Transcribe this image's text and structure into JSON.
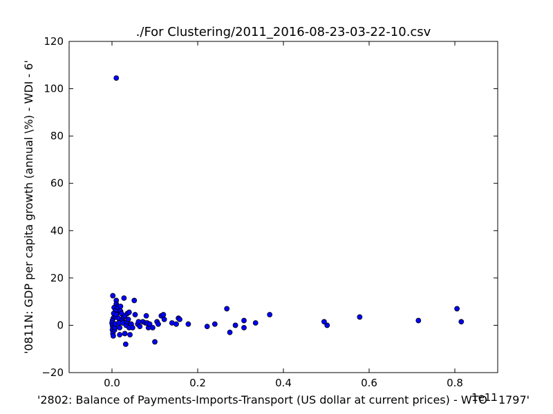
{
  "chart_data": {
    "type": "scatter",
    "title": "./For Clustering/2011_2016-08-23-03-22-10.csv",
    "xlabel": "'2802: Balance of Payments-Imports-Transport (US dollar at current prices) - WTO - 1797'",
    "ylabel": "'0811N: GDP per capita growth  (annual \\%) - WDI - 6'",
    "x_offset_label": "1e11",
    "xlim": [
      -0.1,
      0.9
    ],
    "ylim": [
      -20,
      120
    ],
    "x_ticks": [
      0.0,
      0.2,
      0.4,
      0.6,
      0.8
    ],
    "x_tick_labels": [
      "0.0",
      "0.2",
      "0.4",
      "0.6",
      "0.8"
    ],
    "y_ticks": [
      -20,
      0,
      20,
      40,
      60,
      80,
      100,
      120
    ],
    "y_tick_labels": [
      "−20",
      "0",
      "20",
      "40",
      "60",
      "80",
      "100",
      "120"
    ],
    "grid": false,
    "marker_color": "#0000ff",
    "series": [
      {
        "points": [
          [
            0.01,
            104.5
          ],
          [
            0.002,
            12.5
          ],
          [
            0.01,
            10.5
          ],
          [
            0.01,
            9.0
          ],
          [
            0.013,
            8.0
          ],
          [
            0.005,
            7.5
          ],
          [
            0.012,
            7.0
          ],
          [
            0.02,
            8.0
          ],
          [
            0.015,
            5.5
          ],
          [
            0.008,
            6.0
          ],
          [
            0.004,
            5.0
          ],
          [
            0.003,
            3.0
          ],
          [
            0.001,
            2.0
          ],
          [
            0.0,
            1.0
          ],
          [
            0.001,
            0.0
          ],
          [
            0.002,
            -1.0
          ],
          [
            0.001,
            -2.0
          ],
          [
            0.002,
            -3.5
          ],
          [
            0.003,
            -4.5
          ],
          [
            0.006,
            -2.0
          ],
          [
            0.007,
            -1.0
          ],
          [
            0.008,
            0.5
          ],
          [
            0.009,
            3.5
          ],
          [
            0.01,
            4.5
          ],
          [
            0.015,
            3.0
          ],
          [
            0.016,
            1.0
          ],
          [
            0.018,
            -1.0
          ],
          [
            0.018,
            -4.0
          ],
          [
            0.02,
            6.0
          ],
          [
            0.022,
            5.0
          ],
          [
            0.024,
            2.5
          ],
          [
            0.025,
            1.0
          ],
          [
            0.027,
            3.5
          ],
          [
            0.028,
            11.5
          ],
          [
            0.03,
            4.0
          ],
          [
            0.03,
            -3.5
          ],
          [
            0.032,
            -8.0
          ],
          [
            0.033,
            0.0
          ],
          [
            0.035,
            1.5
          ],
          [
            0.036,
            5.0
          ],
          [
            0.038,
            2.5
          ],
          [
            0.04,
            -1.0
          ],
          [
            0.04,
            5.5
          ],
          [
            0.042,
            -4.0
          ],
          [
            0.045,
            0.5
          ],
          [
            0.048,
            -1.0
          ],
          [
            0.052,
            10.5
          ],
          [
            0.054,
            4.5
          ],
          [
            0.06,
            0.5
          ],
          [
            0.062,
            1.5
          ],
          [
            0.065,
            -0.5
          ],
          [
            0.072,
            1.5
          ],
          [
            0.078,
            1.0
          ],
          [
            0.08,
            4.0
          ],
          [
            0.082,
            1.0
          ],
          [
            0.085,
            -1.0
          ],
          [
            0.088,
            0.5
          ],
          [
            0.095,
            -1.0
          ],
          [
            0.1,
            -7.0
          ],
          [
            0.105,
            1.5
          ],
          [
            0.108,
            0.5
          ],
          [
            0.115,
            4.0
          ],
          [
            0.12,
            4.5
          ],
          [
            0.122,
            2.5
          ],
          [
            0.14,
            1.0
          ],
          [
            0.15,
            0.5
          ],
          [
            0.155,
            3.0
          ],
          [
            0.158,
            2.5
          ],
          [
            0.178,
            0.5
          ],
          [
            0.222,
            -0.5
          ],
          [
            0.24,
            0.5
          ],
          [
            0.268,
            7.0
          ],
          [
            0.275,
            -3.0
          ],
          [
            0.288,
            0.0
          ],
          [
            0.308,
            2.0
          ],
          [
            0.308,
            -1.0
          ],
          [
            0.335,
            1.0
          ],
          [
            0.368,
            4.5
          ],
          [
            0.495,
            1.5
          ],
          [
            0.502,
            0.0
          ],
          [
            0.578,
            3.5
          ],
          [
            0.715,
            2.0
          ],
          [
            0.805,
            7.0
          ],
          [
            0.815,
            1.5
          ]
        ]
      }
    ]
  }
}
